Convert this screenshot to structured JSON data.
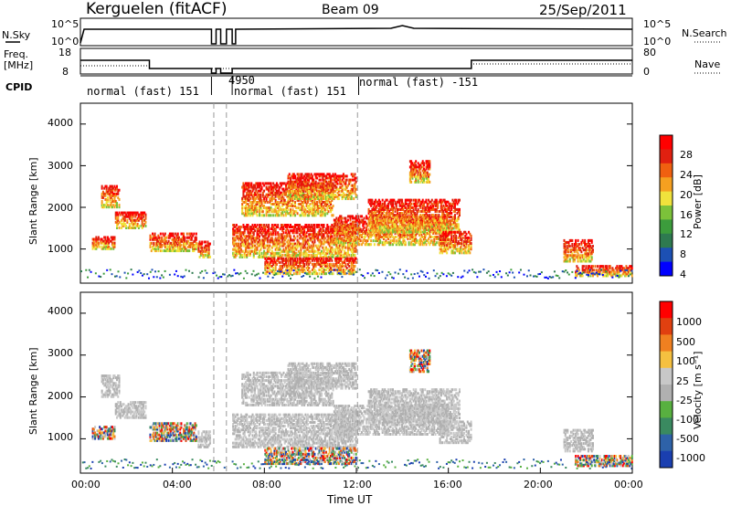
{
  "header": {
    "station": "Kerguelen (fitACF)",
    "beam": "Beam 09",
    "date": "25/Sep/2011"
  },
  "top_panels": {
    "nsky_label": "N.Sky",
    "nsearch_label": "N.Search",
    "nsky_ticks": [
      "10^5",
      "10^0"
    ],
    "nsearch_ticks": [
      "10^5",
      "10^0"
    ],
    "freq_label_1": "Freq.",
    "freq_label_2": "[MHz]",
    "freq_ticks": [
      "18",
      "8"
    ],
    "nave_label": "Nave",
    "nave_ticks": [
      "80",
      "0"
    ],
    "cpid_label": "CPID",
    "cpid_segments": [
      {
        "label": "normal (fast) 151"
      },
      {
        "label": "4950"
      },
      {
        "label": "normal (fast) 151"
      },
      {
        "label": "normal (fast) -151"
      }
    ]
  },
  "chart_data": [
    {
      "type": "heatmap",
      "panel": "Power",
      "ylabel": "Slant Range [km]",
      "yticks": [
        "4000",
        "3000",
        "2000",
        "1000"
      ],
      "ylim": [
        180,
        4500
      ],
      "colorbar_label": "Power [dB]",
      "colorbar_ticks": [
        "28",
        "24",
        "20",
        "16",
        "12",
        "8",
        "4"
      ],
      "colors": [
        "#0000ff",
        "#1c50b4",
        "#2e7a50",
        "#3c9c3c",
        "#7cc23a",
        "#f0e23c",
        "#f5a020",
        "#f06010",
        "#e02010",
        "#ff0000"
      ]
    },
    {
      "type": "heatmap",
      "panel": "Velocity",
      "ylabel": "Slant Range [km]",
      "yticks": [
        "4000",
        "3000",
        "2000",
        "1000"
      ],
      "ylim": [
        180,
        4500
      ],
      "colorbar_label": "Velocity [m s⁻¹]",
      "colorbar_ticks": [
        "1000",
        "500",
        "100",
        "25",
        "-25",
        "-100",
        "-500",
        "-1000"
      ],
      "colors": [
        "#1a3fb0",
        "#2e62a8",
        "#3a8a60",
        "#58b040",
        "#b0b0b0",
        "#c8c8c8",
        "#f5c040",
        "#f08020",
        "#e04010",
        "#ff0000"
      ]
    }
  ],
  "xaxis": {
    "label": "Time UT",
    "ticks": [
      "00:00",
      "04:00",
      "08:00",
      "12:00",
      "16:00",
      "20:00",
      "00:00"
    ]
  }
}
